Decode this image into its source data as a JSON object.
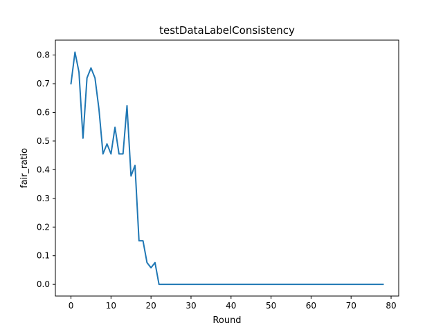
{
  "chart_data": {
    "type": "line",
    "title": "testDataLabelConsistency",
    "xlabel": "Round",
    "ylabel": "fair_ratio",
    "xlim": [
      -3.9,
      81.9
    ],
    "ylim": [
      -0.0406,
      0.852
    ],
    "x_ticks": [
      0,
      10,
      20,
      30,
      40,
      50,
      60,
      70,
      80
    ],
    "y_ticks": [
      0.0,
      0.1,
      0.2,
      0.3,
      0.4,
      0.5,
      0.6,
      0.7,
      0.8
    ],
    "x_tick_labels": [
      "0",
      "10",
      "20",
      "30",
      "40",
      "50",
      "60",
      "70",
      "80"
    ],
    "y_tick_labels": [
      "0.0",
      "0.1",
      "0.2",
      "0.3",
      "0.4",
      "0.5",
      "0.6",
      "0.7",
      "0.8"
    ],
    "grid": false,
    "legend": "none",
    "series": [
      {
        "color": "#1f77b4",
        "x": [
          0,
          1,
          2,
          3,
          4,
          5,
          6,
          7,
          8,
          9,
          10,
          11,
          12,
          13,
          14,
          15,
          16,
          17,
          18,
          19,
          20,
          21,
          22,
          23,
          24,
          25,
          26,
          27,
          28,
          29,
          30,
          31,
          32,
          33,
          34,
          35,
          36,
          37,
          38,
          39,
          40,
          41,
          42,
          43,
          44,
          45,
          46,
          47,
          48,
          49,
          50,
          51,
          52,
          53,
          54,
          55,
          56,
          57,
          58,
          59,
          60,
          61,
          62,
          63,
          64,
          65,
          66,
          67,
          68,
          69,
          70,
          71,
          72,
          73,
          74,
          75,
          76,
          77,
          78
        ],
        "values": [
          0.7,
          0.81,
          0.74,
          0.51,
          0.72,
          0.755,
          0.72,
          0.61,
          0.455,
          0.49,
          0.455,
          0.548,
          0.455,
          0.455,
          0.623,
          0.378,
          0.415,
          0.152,
          0.152,
          0.076,
          0.058,
          0.076,
          0.0,
          0,
          0,
          0,
          0,
          0,
          0,
          0,
          0,
          0,
          0,
          0,
          0,
          0,
          0,
          0,
          0,
          0,
          0,
          0,
          0,
          0,
          0,
          0,
          0,
          0,
          0,
          0,
          0,
          0,
          0,
          0,
          0,
          0,
          0,
          0,
          0,
          0,
          0,
          0,
          0,
          0,
          0,
          0,
          0,
          0,
          0,
          0,
          0,
          0,
          0,
          0,
          0,
          0,
          0,
          0,
          0
        ]
      }
    ]
  }
}
